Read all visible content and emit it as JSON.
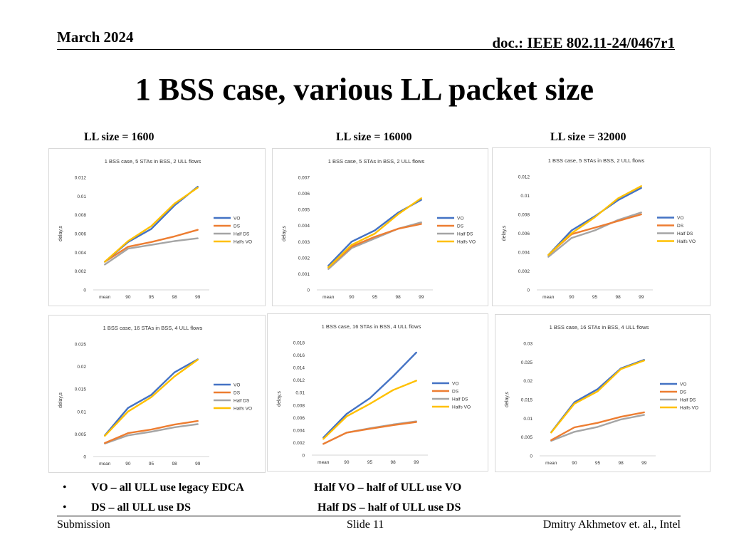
{
  "header": {
    "date": "March 2024",
    "doc": "doc.: IEEE 802.11-24/0467r1"
  },
  "title": "1 BSS case, various LL packet size",
  "columns": [
    "LL size = 1600",
    "LL size = 16000",
    "LL size = 32000"
  ],
  "colors": {
    "VO": "#4472C4",
    "DS": "#ED7D31",
    "Half DS": "#A5A5A5",
    "Halfs VO": "#FFC000"
  },
  "chart_data": [
    {
      "type": "line",
      "title": "1 BSS case, 5 STAs in BSS, 2 ULL flows",
      "ylabel": "delay,s",
      "categories": [
        "mean",
        "90",
        "95",
        "98",
        "99"
      ],
      "yticks": [
        "0",
        "0.002",
        "0.004",
        "0.006",
        "0.008",
        "0.01",
        "0.012"
      ],
      "ylim": [
        0,
        0.012
      ],
      "legend": "right",
      "series": [
        {
          "name": "VO",
          "values": [
            0.003,
            0.0051,
            0.0065,
            0.009,
            0.011
          ]
        },
        {
          "name": "DS",
          "values": [
            0.003,
            0.0046,
            0.0051,
            0.0057,
            0.0064
          ]
        },
        {
          "name": "Half DS",
          "values": [
            0.0027,
            0.0044,
            0.0048,
            0.0052,
            0.0055
          ]
        },
        {
          "name": "Halfs VO",
          "values": [
            0.003,
            0.0052,
            0.0068,
            0.0092,
            0.0109
          ]
        }
      ]
    },
    {
      "type": "line",
      "title": "1 BSS case, 5 STAs in BSS, 2 ULL flows",
      "ylabel": "delay,s",
      "categories": [
        "mean",
        "90",
        "95",
        "98",
        "99"
      ],
      "yticks": [
        "0",
        "0.001",
        "0.002",
        "0.003",
        "0.004",
        "0.005",
        "0.006",
        "0.007"
      ],
      "ylim": [
        0,
        0.007
      ],
      "legend": "right",
      "series": [
        {
          "name": "VO",
          "values": [
            0.0015,
            0.003,
            0.0037,
            0.0048,
            0.0056
          ]
        },
        {
          "name": "DS",
          "values": [
            0.0014,
            0.0027,
            0.0033,
            0.0038,
            0.0041
          ]
        },
        {
          "name": "Half DS",
          "values": [
            0.0013,
            0.0026,
            0.0032,
            0.0038,
            0.0042
          ]
        },
        {
          "name": "Halfs VO",
          "values": [
            0.0014,
            0.0028,
            0.0035,
            0.0047,
            0.0057
          ]
        }
      ]
    },
    {
      "type": "line",
      "title": "1 BSS case, 5 STAs in BSS, 2 ULL flows",
      "ylabel": "delay,s",
      "categories": [
        "mean",
        "90",
        "95",
        "98",
        "99"
      ],
      "yticks": [
        "0",
        "0.002",
        "0.004",
        "0.006",
        "0.008",
        "0.01",
        "0.012"
      ],
      "ylim": [
        0,
        0.012
      ],
      "legend": "right",
      "series": [
        {
          "name": "VO",
          "values": [
            0.0037,
            0.0063,
            0.0078,
            0.0095,
            0.0108
          ]
        },
        {
          "name": "DS",
          "values": [
            0.0037,
            0.0059,
            0.0066,
            0.0073,
            0.008
          ]
        },
        {
          "name": "Half DS",
          "values": [
            0.0035,
            0.0055,
            0.0063,
            0.0074,
            0.0082
          ]
        },
        {
          "name": "Halfs VO",
          "values": [
            0.0037,
            0.006,
            0.0077,
            0.0097,
            0.011
          ]
        }
      ]
    },
    {
      "type": "line",
      "title": "1 BSS case, 16 STAs in BSS, 4 ULL flows",
      "ylabel": "delay,s",
      "categories": [
        "mean",
        "90",
        "95",
        "98",
        "99"
      ],
      "yticks": [
        "0",
        "0.005",
        "0.01",
        "0.015",
        "0.02",
        "0.025"
      ],
      "ylim": [
        0,
        0.025
      ],
      "legend": "right",
      "series": [
        {
          "name": "VO",
          "values": [
            0.0047,
            0.0108,
            0.0137,
            0.0187,
            0.0216
          ]
        },
        {
          "name": "DS",
          "values": [
            0.003,
            0.0052,
            0.006,
            0.0071,
            0.0079
          ]
        },
        {
          "name": "Half DS",
          "values": [
            0.0029,
            0.0047,
            0.0055,
            0.0065,
            0.0072
          ]
        },
        {
          "name": "Halfs VO",
          "values": [
            0.0046,
            0.01,
            0.0132,
            0.0178,
            0.0215
          ]
        }
      ]
    },
    {
      "type": "line",
      "title": "1 BSS case, 16 STAs in BSS, 4 ULL flows",
      "ylabel": "delay,s",
      "categories": [
        "mean",
        "90",
        "95",
        "98",
        "99"
      ],
      "yticks": [
        "0",
        "0.002",
        "0.004",
        "0.006",
        "0.008",
        "0.01",
        "0.012",
        "0.014",
        "0.016",
        "0.018"
      ],
      "ylim": [
        0,
        0.018
      ],
      "legend": "right",
      "series": [
        {
          "name": "VO",
          "values": [
            0.0028,
            0.0066,
            0.0091,
            0.0126,
            0.0164
          ]
        },
        {
          "name": "DS",
          "values": [
            0.0018,
            0.0036,
            0.0042,
            0.0048,
            0.0053
          ]
        },
        {
          "name": "Half DS",
          "values": [
            0.0018,
            0.0036,
            0.0043,
            0.0049,
            0.0054
          ]
        },
        {
          "name": "Halfs VO",
          "values": [
            0.0026,
            0.0062,
            0.0082,
            0.0104,
            0.0119
          ]
        }
      ]
    },
    {
      "type": "line",
      "title": "1 BSS case, 16 STAs in BSS, 4 ULL flows",
      "ylabel": "delay,s",
      "categories": [
        "mean",
        "90",
        "95",
        "98",
        "99"
      ],
      "yticks": [
        "0",
        "0.005",
        "0.01",
        "0.015",
        "0.02",
        "0.025",
        "0.03"
      ],
      "ylim": [
        0,
        0.03
      ],
      "legend": "right",
      "series": [
        {
          "name": "VO",
          "values": [
            0.0063,
            0.0143,
            0.0178,
            0.0233,
            0.0256
          ]
        },
        {
          "name": "DS",
          "values": [
            0.0042,
            0.0076,
            0.0088,
            0.0104,
            0.0116
          ]
        },
        {
          "name": "Half DS",
          "values": [
            0.004,
            0.0064,
            0.0077,
            0.0097,
            0.0109
          ]
        },
        {
          "name": "Halfs VO",
          "values": [
            0.0062,
            0.0139,
            0.0172,
            0.0231,
            0.0254
          ]
        }
      ]
    }
  ],
  "bullets": {
    "b1": "VO – all ULL use legacy EDCA",
    "b1r": "Half VO – half of ULL use VO",
    "b2": "DS – all ULL use DS",
    "b2r": "Half DS – half of ULL use DS"
  },
  "footer": {
    "left": "Submission",
    "center": "Slide 11",
    "right": "Dmitry Akhmetov et. al., Intel"
  }
}
